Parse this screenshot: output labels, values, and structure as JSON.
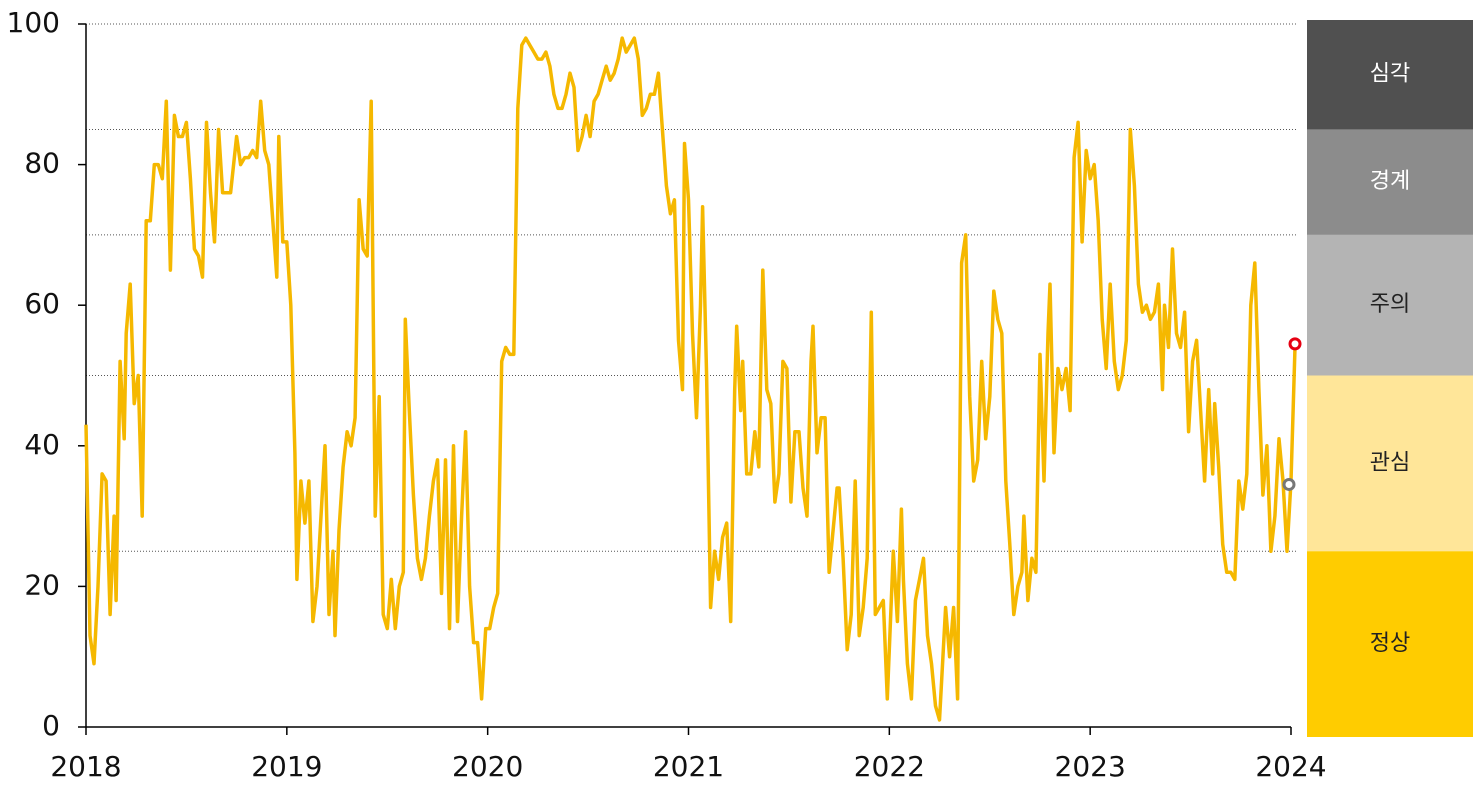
{
  "chart_data": {
    "type": "line",
    "x": [
      2018.0,
      2018.02,
      2018.04,
      2018.06,
      2018.08,
      2018.1,
      2018.12,
      2018.14,
      2018.15,
      2018.17,
      2018.19,
      2018.2,
      2018.22,
      2018.24,
      2018.26,
      2018.28,
      2018.3,
      2018.32,
      2018.34,
      2018.36,
      2018.38,
      2018.4,
      2018.42,
      2018.44,
      2018.46,
      2018.48,
      2018.5,
      2018.52,
      2018.54,
      2018.56,
      2018.58,
      2018.6,
      2018.62,
      2018.64,
      2018.66,
      2018.68,
      2018.7,
      2018.72,
      2018.75,
      2018.77,
      2018.79,
      2018.81,
      2018.83,
      2018.85,
      2018.87,
      2018.89,
      2018.91,
      2018.93,
      2018.95,
      2018.96,
      2018.98,
      2019.0,
      2019.02,
      2019.04,
      2019.05,
      2019.07,
      2019.09,
      2019.11,
      2019.13,
      2019.15,
      2019.17,
      2019.19,
      2019.21,
      2019.23,
      2019.24,
      2019.26,
      2019.28,
      2019.3,
      2019.32,
      2019.34,
      2019.36,
      2019.38,
      2019.4,
      2019.42,
      2019.44,
      2019.46,
      2019.48,
      2019.5,
      2019.52,
      2019.54,
      2019.56,
      2019.58,
      2019.59,
      2019.61,
      2019.63,
      2019.65,
      2019.67,
      2019.69,
      2019.71,
      2019.73,
      2019.75,
      2019.77,
      2019.79,
      2019.81,
      2019.83,
      2019.85,
      2019.87,
      2019.89,
      2019.91,
      2019.93,
      2019.95,
      2019.97,
      2019.99,
      2020.01,
      2020.03,
      2020.05,
      2020.07,
      2020.09,
      2020.11,
      2020.13,
      2020.15,
      2020.17,
      2020.19,
      2020.21,
      2020.23,
      2020.25,
      2020.27,
      2020.29,
      2020.31,
      2020.33,
      2020.35,
      2020.37,
      2020.39,
      2020.41,
      2020.43,
      2020.45,
      2020.47,
      2020.49,
      2020.51,
      2020.53,
      2020.55,
      2020.57,
      2020.59,
      2020.61,
      2020.63,
      2020.65,
      2020.67,
      2020.69,
      2020.71,
      2020.73,
      2020.75,
      2020.77,
      2020.79,
      2020.81,
      2020.83,
      2020.85,
      2020.87,
      2020.89,
      2020.91,
      2020.93,
      2020.95,
      2020.97,
      2020.98,
      2021.0,
      2021.02,
      2021.04,
      2021.06,
      2021.07,
      2021.09,
      2021.11,
      2021.13,
      2021.15,
      2021.17,
      2021.19,
      2021.21,
      2021.23,
      2021.24,
      2021.26,
      2021.27,
      2021.29,
      2021.31,
      2021.33,
      2021.35,
      2021.37,
      2021.39,
      2021.41,
      2021.43,
      2021.45,
      2021.47,
      2021.49,
      2021.51,
      2021.53,
      2021.55,
      2021.57,
      2021.59,
      2021.61,
      2021.62,
      2021.64,
      2021.66,
      2021.68,
      2021.7,
      2021.72,
      2021.74,
      2021.75,
      2021.77,
      2021.79,
      2021.81,
      2021.83,
      2021.85,
      2021.87,
      2021.89,
      2021.91,
      2021.93,
      2021.95,
      2021.97,
      2021.99,
      2022.02,
      2022.04,
      2022.06,
      2022.07,
      2022.09,
      2022.11,
      2022.13,
      2022.15,
      2022.17,
      2022.19,
      2022.21,
      2022.23,
      2022.25,
      2022.28,
      2022.3,
      2022.32,
      2022.34,
      2022.36,
      2022.38,
      2022.4,
      2022.42,
      2022.44,
      2022.46,
      2022.48,
      2022.5,
      2022.52,
      2022.54,
      2022.56,
      2022.58,
      2022.6,
      2022.62,
      2022.64,
      2022.66,
      2022.67,
      2022.69,
      2022.71,
      2022.73,
      2022.75,
      2022.77,
      2022.79,
      2022.8,
      2022.82,
      2022.84,
      2022.86,
      2022.88,
      2022.9,
      2022.92,
      2022.94,
      2022.96,
      2022.98,
      2023.0,
      2023.02,
      2023.04,
      2023.06,
      2023.08,
      2023.1,
      2023.12,
      2023.14,
      2023.16,
      2023.18,
      2023.2,
      2023.22,
      2023.24,
      2023.26,
      2023.28,
      2023.3,
      2023.32,
      2023.34,
      2023.36,
      2023.37,
      2023.39,
      2023.41,
      2023.43,
      2023.45,
      2023.47,
      2023.49,
      2023.51,
      2023.53,
      2023.55,
      2023.57,
      2023.59,
      2023.61,
      2023.62,
      2023.64,
      2023.66,
      2023.68,
      2023.7,
      2023.72,
      2023.74,
      2023.76,
      2023.78,
      2023.8,
      2023.82,
      2023.84,
      2023.86,
      2023.88,
      2023.9,
      2023.92,
      2023.94,
      2023.96,
      2023.98,
      2024.0,
      2024.02
    ],
    "series": [
      {
        "color": "#f5b800",
        "values": [
          43,
          13,
          9,
          20,
          36,
          35,
          16,
          30,
          18,
          52,
          41,
          56,
          63,
          46,
          50,
          30,
          72,
          72,
          80,
          80,
          78,
          89,
          65,
          87,
          84,
          84,
          86,
          78,
          68,
          67,
          64,
          86,
          76,
          69,
          85,
          76,
          76,
          76,
          84,
          80,
          81,
          81,
          82,
          81,
          89,
          82,
          80,
          72,
          64,
          84,
          69,
          69,
          60,
          39,
          21,
          35,
          29,
          35,
          15,
          20,
          30,
          40,
          16,
          25,
          13,
          28,
          37,
          42,
          40,
          44,
          75,
          68,
          67,
          89,
          30,
          47,
          16,
          14,
          21,
          14,
          20,
          22,
          58,
          45,
          33,
          24,
          21,
          24,
          30,
          35,
          38,
          19,
          38,
          14,
          40,
          15,
          30,
          42,
          20,
          12,
          12,
          4,
          14,
          14,
          17,
          19,
          52,
          54,
          53,
          53,
          88,
          97,
          98,
          97,
          96,
          95,
          95,
          96,
          94,
          90,
          88,
          88,
          90,
          93,
          91,
          82,
          84,
          87,
          84,
          89,
          90,
          92,
          94,
          92,
          93,
          95,
          98,
          96,
          97,
          98,
          95,
          87,
          88,
          90,
          90,
          93,
          85,
          77,
          73,
          75,
          55,
          48,
          83,
          75,
          56,
          44,
          60,
          74,
          50,
          17,
          25,
          21,
          27,
          29,
          15,
          48,
          57,
          45,
          52,
          36,
          36,
          42,
          37,
          65,
          48,
          46,
          32,
          36,
          52,
          51,
          32,
          42,
          42,
          34,
          30,
          52,
          57,
          39,
          44,
          44,
          22,
          28,
          34,
          34,
          24,
          11,
          16,
          35,
          13,
          17,
          24,
          59,
          16,
          17,
          18,
          4,
          25,
          15,
          31,
          21,
          9,
          4,
          18,
          21,
          24,
          13,
          9,
          3,
          1,
          17,
          10,
          17,
          4,
          66,
          70,
          47,
          35,
          38,
          52,
          41,
          47,
          62,
          58,
          56,
          35,
          26,
          16,
          20,
          22,
          30,
          18,
          24,
          22,
          53,
          35,
          56,
          63,
          39,
          51,
          48,
          51,
          45,
          81,
          86,
          69,
          82,
          78,
          80,
          72,
          58,
          51,
          63,
          52,
          48,
          50,
          55,
          85,
          77,
          63,
          59,
          60,
          58,
          59,
          63,
          48,
          60,
          54,
          68,
          56,
          54,
          59,
          42,
          52,
          55,
          45,
          35,
          48,
          36,
          46,
          37,
          26,
          22,
          22,
          21,
          35,
          31,
          36,
          60,
          66,
          48,
          33,
          40,
          25,
          30,
          41,
          35,
          25,
          35,
          54
        ]
      }
    ],
    "markers": [
      {
        "x": 2023.99,
        "value": 34.5,
        "color": "#777777"
      },
      {
        "x": 2024.02,
        "value": 54.5,
        "color": "#e60012"
      }
    ],
    "reference_lines": [
      25,
      50,
      70,
      85,
      100
    ],
    "levels": [
      {
        "name": "심각",
        "from": 85,
        "to": 100,
        "color": "#505050",
        "text_color": "#ffffff"
      },
      {
        "name": "경계",
        "from": 70,
        "to": 85,
        "color": "#8c8c8c",
        "text_color": "#ffffff"
      },
      {
        "name": "주의",
        "from": 50,
        "to": 70,
        "color": "#b4b4b4",
        "text_color": "#222222"
      },
      {
        "name": "관심",
        "from": 25,
        "to": 50,
        "color": "#ffe699",
        "text_color": "#222222"
      },
      {
        "name": "정상",
        "from": 0,
        "to": 25,
        "color": "#ffcc00",
        "text_color": "#222222"
      }
    ],
    "xlim": [
      2018,
      2024
    ],
    "xticks": [
      2018,
      2019,
      2020,
      2021,
      2022,
      2023,
      2024
    ],
    "ylim": [
      0,
      100
    ],
    "yticks": [
      0,
      20,
      40,
      60,
      80,
      100
    ]
  }
}
